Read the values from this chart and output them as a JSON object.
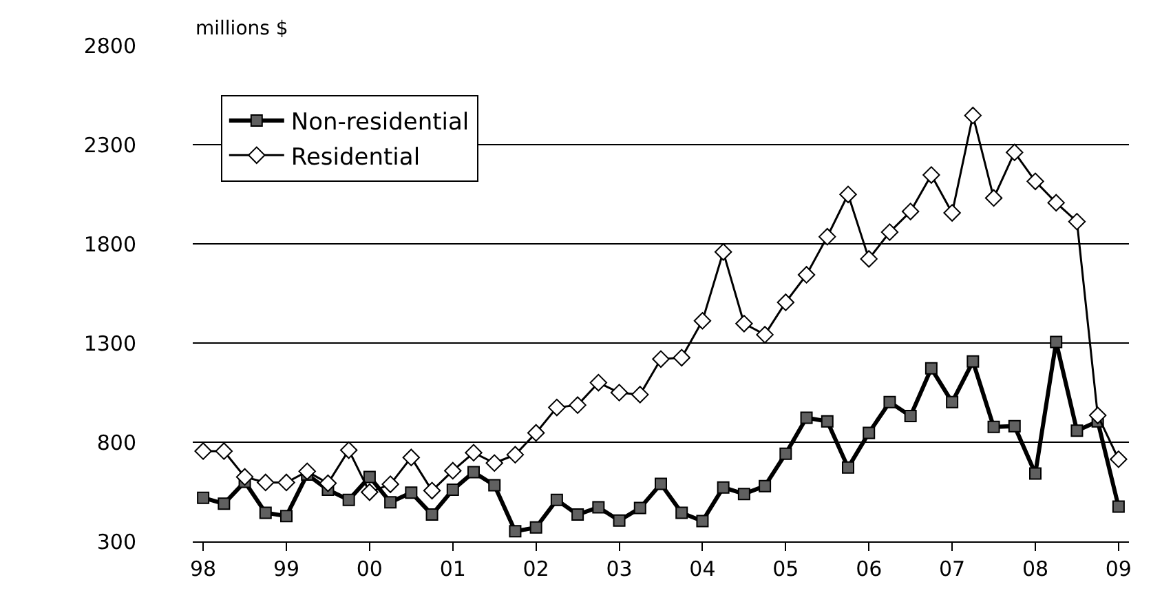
{
  "chart_data": {
    "type": "line",
    "ylabel": "millions $",
    "categories": [
      "98",
      null,
      null,
      null,
      "99",
      null,
      null,
      null,
      "00",
      null,
      null,
      null,
      "01",
      null,
      null,
      null,
      "02",
      null,
      null,
      null,
      "03",
      null,
      null,
      null,
      "04",
      null,
      null,
      null,
      "05",
      null,
      null,
      null,
      "06",
      null,
      null,
      null,
      "07",
      null,
      null,
      null,
      "08",
      null,
      null,
      null,
      "09"
    ],
    "series": [
      {
        "name": "Non-residential",
        "color": "#000000",
        "marker": "square",
        "values": [
          520,
          490,
          600,
          444,
          428,
          637,
          560,
          509,
          625,
          497,
          546,
          435,
          560,
          649,
          583,
          351,
          370,
          509,
          435,
          472,
          405,
          468,
          590,
          444,
          402,
          572,
          539,
          579,
          742,
          923,
          905,
          672,
          847,
          1002,
          932,
          1172,
          1002,
          1207,
          877,
          881,
          642,
          1305,
          858,
          905,
          475
        ]
      },
      {
        "name": "Residential",
        "color": "#000000",
        "marker": "diamond",
        "values": [
          755,
          755,
          625,
          597,
          597,
          653,
          593,
          760,
          548,
          588,
          723,
          556,
          656,
          747,
          695,
          737,
          847,
          975,
          987,
          1100,
          1050,
          1040,
          1219,
          1226,
          1412,
          1759,
          1398,
          1342,
          1505,
          1644,
          1836,
          2049,
          1724,
          1859,
          1963,
          2147,
          1956,
          2447,
          2031,
          2261,
          2115,
          2007,
          1912,
          935,
          714
        ]
      }
    ],
    "ylim": [
      300,
      2800
    ],
    "yticks": [
      300,
      800,
      1300,
      1800,
      2300,
      2800
    ],
    "grid": "y",
    "legend": "top left"
  }
}
